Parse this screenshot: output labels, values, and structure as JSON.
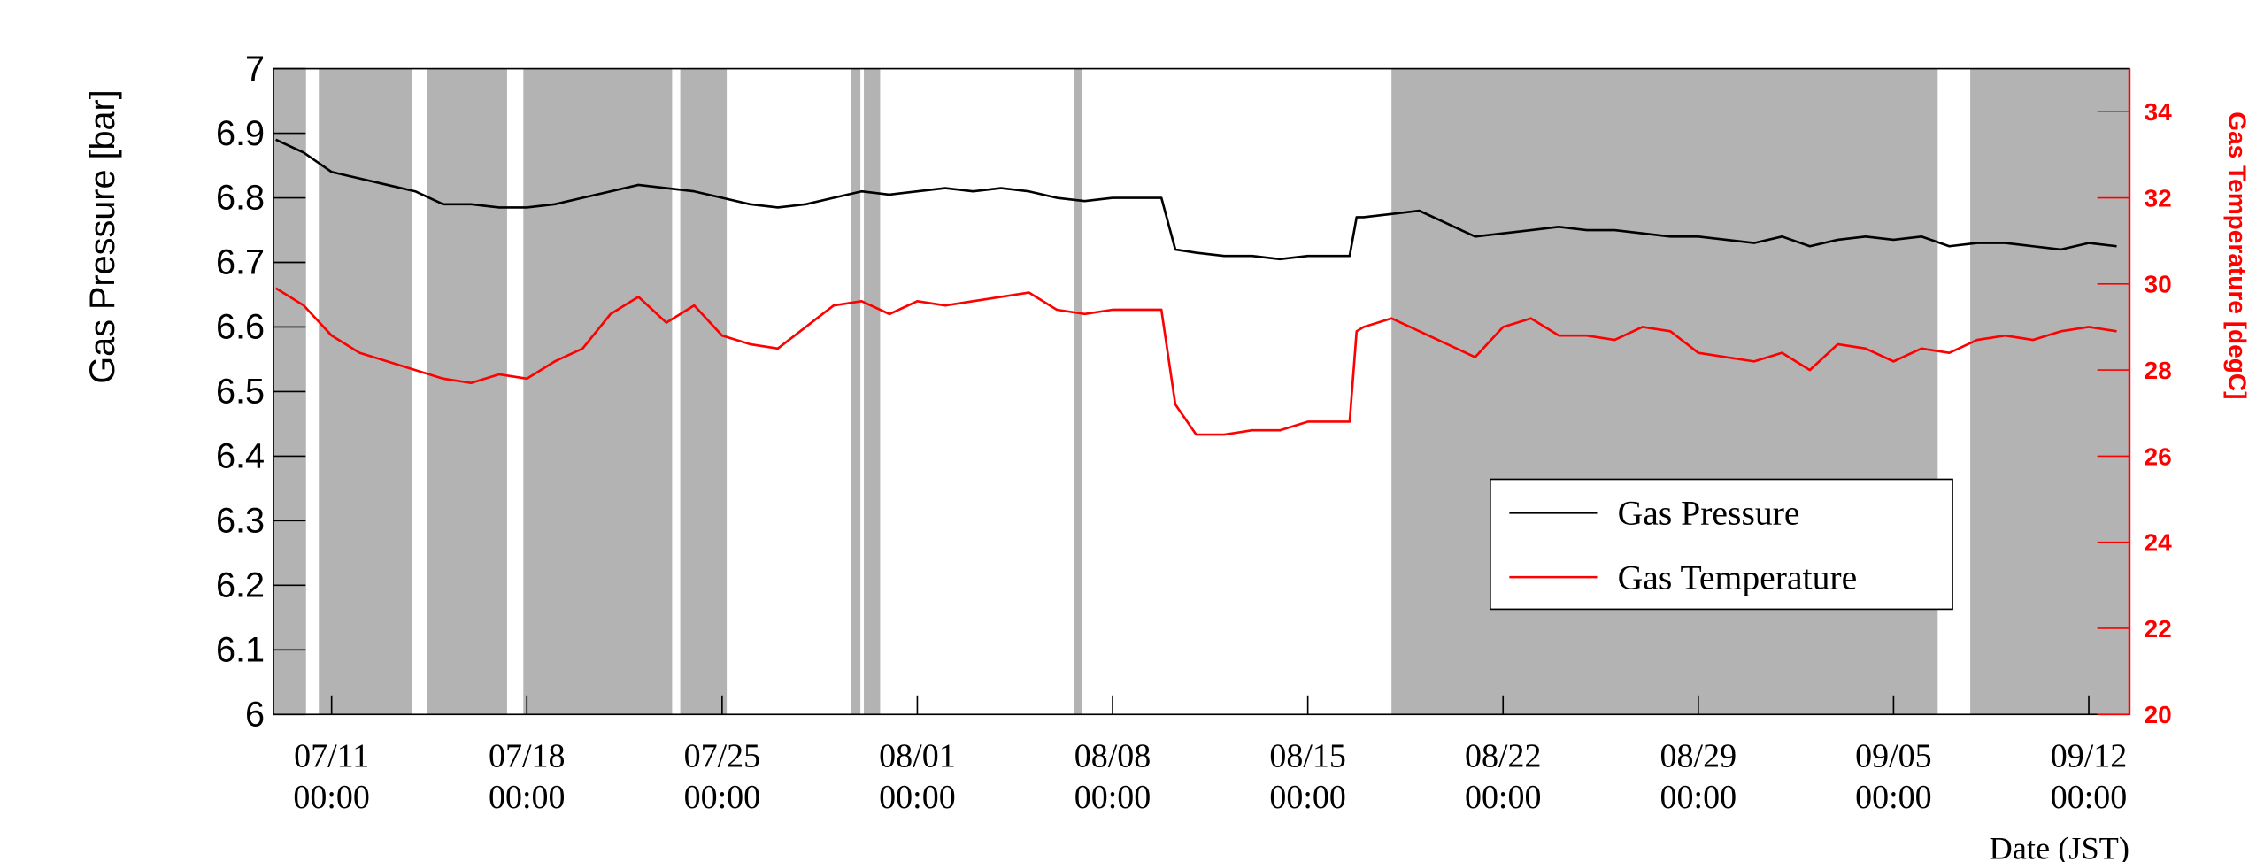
{
  "chart_data": {
    "type": "line",
    "y_label": "Gas Pressure [bar]",
    "y2_label": "Gas Temperature [degC]",
    "x_label": "Date (JST)",
    "xlim": [
      "07/08 22:00",
      "09/13 11:00"
    ],
    "xticks": [
      "07/11 00:00",
      "07/18 00:00",
      "07/25 00:00",
      "08/01 00:00",
      "08/08 00:00",
      "08/15 00:00",
      "08/22 00:00",
      "08/29 00:00",
      "09/05 00:00",
      "09/12 00:00"
    ],
    "ylim": [
      6,
      7
    ],
    "yticks": [
      6,
      6.1,
      6.2,
      6.3,
      6.4,
      6.5,
      6.6,
      6.7,
      6.8,
      6.9,
      7
    ],
    "y2lim": [
      20,
      35
    ],
    "y2ticks": [
      20,
      22,
      24,
      26,
      28,
      30,
      32,
      34
    ],
    "y2_color": "#ff0000",
    "shaded_color": "#b3b3b3",
    "shaded_periods": [
      [
        "07/08 22:00",
        "07/10 02:00"
      ],
      [
        "07/10 13:00",
        "07/13 21:00"
      ],
      [
        "07/14 10:00",
        "07/17 07:00"
      ],
      [
        "07/17 21:00",
        "07/23 05:00"
      ],
      [
        "07/23 12:00",
        "07/25 04:00"
      ],
      [
        "07/29 15:00",
        "07/29 23:00"
      ],
      [
        "07/30 02:00",
        "07/30 16:00"
      ],
      [
        "08/06 15:00",
        "08/06 22:00"
      ],
      [
        "08/18 00:00",
        "09/06 14:00"
      ],
      [
        "09/07 18:00",
        "09/13 11:00"
      ]
    ],
    "legend_position": "right",
    "x": [
      "07/09 00:00",
      "07/10 00:00",
      "07/11 00:00",
      "07/12 00:00",
      "07/13 00:00",
      "07/14 00:00",
      "07/15 00:00",
      "07/16 00:00",
      "07/17 00:00",
      "07/18 00:00",
      "07/19 00:00",
      "07/20 00:00",
      "07/21 00:00",
      "07/22 00:00",
      "07/23 00:00",
      "07/24 00:00",
      "07/25 00:00",
      "07/26 00:00",
      "07/27 00:00",
      "07/28 00:00",
      "07/29 00:00",
      "07/30 00:00",
      "07/31 00:00",
      "08/01 00:00",
      "08/02 00:00",
      "08/03 00:00",
      "08/04 00:00",
      "08/05 00:00",
      "08/06 00:00",
      "08/07 00:00",
      "08/08 00:00",
      "08/09 00:00",
      "08/09 18:00",
      "08/10 06:00",
      "08/11 00:00",
      "08/12 00:00",
      "08/13 00:00",
      "08/14 00:00",
      "08/15 00:00",
      "08/16 00:00",
      "08/16 12:00",
      "08/16 18:00",
      "08/17 00:00",
      "08/18 00:00",
      "08/19 00:00",
      "08/20 00:00",
      "08/21 00:00",
      "08/22 00:00",
      "08/23 00:00",
      "08/24 00:00",
      "08/25 00:00",
      "08/26 00:00",
      "08/27 00:00",
      "08/28 00:00",
      "08/29 00:00",
      "08/30 00:00",
      "08/31 00:00",
      "09/01 00:00",
      "09/02 00:00",
      "09/03 00:00",
      "09/04 00:00",
      "09/05 00:00",
      "09/06 00:00",
      "09/07 00:00",
      "09/08 00:00",
      "09/09 00:00",
      "09/10 00:00",
      "09/11 00:00",
      "09/12 00:00",
      "09/13 00:00"
    ],
    "series": [
      {
        "name": "Gas Pressure",
        "color": "#000000",
        "values": [
          6.89,
          6.87,
          6.84,
          6.83,
          6.82,
          6.81,
          6.79,
          6.79,
          6.785,
          6.785,
          6.79,
          6.8,
          6.81,
          6.82,
          6.815,
          6.81,
          6.8,
          6.79,
          6.785,
          6.79,
          6.8,
          6.81,
          6.805,
          6.81,
          6.815,
          6.81,
          6.815,
          6.81,
          6.8,
          6.795,
          6.8,
          6.8,
          6.8,
          6.72,
          6.715,
          6.71,
          6.71,
          6.705,
          6.71,
          6.71,
          6.71,
          6.77,
          6.77,
          6.775,
          6.78,
          6.76,
          6.74,
          6.745,
          6.75,
          6.755,
          6.75,
          6.75,
          6.745,
          6.74,
          6.74,
          6.735,
          6.73,
          6.74,
          6.725,
          6.735,
          6.74,
          6.735,
          6.74,
          6.725,
          6.73,
          6.73,
          6.725,
          6.72,
          6.73,
          6.725
        ]
      },
      {
        "name": "Gas Temperature",
        "color": "#ff0000",
        "axis": "y2",
        "values": [
          29.9,
          29.5,
          28.8,
          28.4,
          28.2,
          28.0,
          27.8,
          27.7,
          27.9,
          27.8,
          28.2,
          28.5,
          29.3,
          29.7,
          29.1,
          29.5,
          28.8,
          28.6,
          28.5,
          29.0,
          29.5,
          29.6,
          29.3,
          29.6,
          29.5,
          29.6,
          29.7,
          29.8,
          29.4,
          29.3,
          29.4,
          29.4,
          29.4,
          27.2,
          26.5,
          26.5,
          26.6,
          26.6,
          26.8,
          26.8,
          26.8,
          28.9,
          29.0,
          29.2,
          28.9,
          28.6,
          28.3,
          29.0,
          29.2,
          28.8,
          28.8,
          28.7,
          29.0,
          28.9,
          28.4,
          28.3,
          28.2,
          28.4,
          28.0,
          28.6,
          28.5,
          28.2,
          28.5,
          28.4,
          28.7,
          28.8,
          28.7,
          28.9,
          29.0,
          28.9
        ]
      }
    ]
  }
}
